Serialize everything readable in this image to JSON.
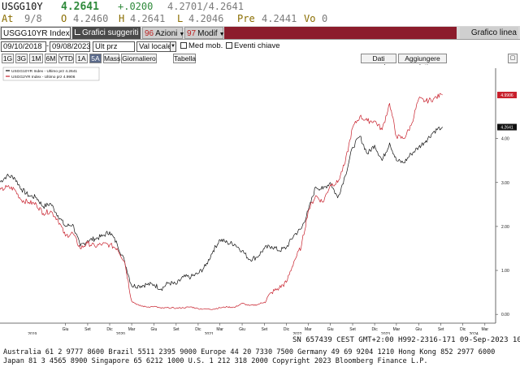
{
  "colors": {
    "green": "#2f8a3b",
    "yellow": "#8a6d00",
    "gray": "#7a7a7a",
    "black": "#111111",
    "red": "#c8202c",
    "toolbar_bg": "#d8d8d8",
    "toolbar_red": "#8c1c2c"
  },
  "quote": {
    "ticker": "USGG10Y",
    "last": "4.2641",
    "change": "+.0200",
    "range": "4.2701/4.2641",
    "at_label": "At",
    "at_time": "9/8",
    "open_label": "O",
    "open": "4.2460",
    "high_label": "H",
    "high": "4.2641",
    "low_label": "L",
    "low": "4.2046",
    "prev_label": "Pre",
    "prev": "4.2441",
    "vol_label": "Vo",
    "vol": "0"
  },
  "toolbar": {
    "security": "USGG10YR Index",
    "suggested_icon": "chart-icon",
    "suggested": "Grafici suggeriti",
    "actions_num": "96",
    "actions": "Azioni",
    "modify_num": "97",
    "modify": "Modif",
    "chart_title": "Grafico linea"
  },
  "controls": {
    "start_date": "09/10/2018",
    "end_date": "09/08/2023",
    "field": "Ult prz",
    "currency": "Val locale",
    "avg_label": "Med mob.",
    "events_label": "Eventi chiave",
    "table_label": "Tabella",
    "data_corr_label": "Dati correla",
    "add_data_label": "Aggiungere dati"
  },
  "periods": [
    "1G",
    "3G",
    "1M",
    "6M",
    "YTD",
    "1A",
    "5A",
    "Mass",
    "Giornaliero"
  ],
  "selected_period": "5A",
  "chart_data": {
    "type": "line",
    "title": "",
    "xlabel": "",
    "ylabel": "",
    "ylim": [
      -0.2,
      5.6
    ],
    "x_range": [
      "2018-09-10",
      "2024-04-01"
    ],
    "y_ticks": [
      0.0,
      1.0,
      2.0,
      3.0,
      4.0
    ],
    "y_tick_labels": [
      "0.00",
      "1.00",
      "2.00",
      "3.00",
      "4.00"
    ],
    "x_tick_month_labels": [
      "Giu",
      "Set",
      "Dic",
      "Mar",
      "Giu",
      "Set",
      "Dic",
      "Mar",
      "Giu",
      "Set",
      "Dic",
      "Mar",
      "Giu",
      "Set",
      "Dic",
      "Mar",
      "Giu",
      "Set",
      "Dic",
      "Mar"
    ],
    "x_year_labels": [
      "2019",
      "2020",
      "2021",
      "2022",
      "2023",
      "2024"
    ],
    "legend": [
      "USGG10YR Index - Ultimo prz  4.2641",
      "USGG2YR Index - Ultimo prz  4.9906"
    ],
    "last_value_badges": [
      "4.9906",
      "4.2641"
    ],
    "series": [
      {
        "name": "USGG10YR Index - Ultimo prz  4.2641",
        "color": "#111111",
        "x": [
          "2018-09",
          "2018-10",
          "2018-11",
          "2018-12",
          "2019-01",
          "2019-02",
          "2019-03",
          "2019-04",
          "2019-05",
          "2019-06",
          "2019-07",
          "2019-08",
          "2019-09",
          "2019-10",
          "2019-11",
          "2019-12",
          "2020-01",
          "2020-02",
          "2020-03",
          "2020-04",
          "2020-05",
          "2020-06",
          "2020-07",
          "2020-08",
          "2020-09",
          "2020-10",
          "2020-11",
          "2020-12",
          "2021-01",
          "2021-02",
          "2021-03",
          "2021-04",
          "2021-05",
          "2021-06",
          "2021-07",
          "2021-08",
          "2021-09",
          "2021-10",
          "2021-11",
          "2021-12",
          "2022-01",
          "2022-02",
          "2022-03",
          "2022-04",
          "2022-05",
          "2022-06",
          "2022-07",
          "2022-08",
          "2022-09",
          "2022-10",
          "2022-11",
          "2022-12",
          "2023-01",
          "2023-02",
          "2023-03",
          "2023-04",
          "2023-05",
          "2023-06",
          "2023-07",
          "2023-08",
          "2023-09"
        ],
        "values": [
          3.0,
          3.15,
          3.12,
          2.85,
          2.7,
          2.66,
          2.45,
          2.52,
          2.25,
          2.0,
          2.05,
          1.55,
          1.68,
          1.72,
          1.78,
          1.88,
          1.6,
          1.2,
          0.65,
          0.65,
          0.68,
          0.68,
          0.58,
          0.72,
          0.68,
          0.85,
          0.85,
          0.93,
          1.1,
          1.45,
          1.7,
          1.63,
          1.6,
          1.45,
          1.25,
          1.3,
          1.5,
          1.55,
          1.45,
          1.52,
          1.8,
          1.95,
          2.35,
          2.9,
          2.85,
          3.0,
          2.65,
          3.15,
          3.8,
          4.05,
          3.65,
          3.85,
          3.5,
          3.9,
          3.5,
          3.45,
          3.65,
          3.8,
          3.95,
          4.15,
          4.26
        ]
      },
      {
        "name": "USGG2YR Index - Ultimo prz  4.9906",
        "color": "#c8202c",
        "x": [
          "2018-09",
          "2018-10",
          "2018-11",
          "2018-12",
          "2019-01",
          "2019-02",
          "2019-03",
          "2019-04",
          "2019-05",
          "2019-06",
          "2019-07",
          "2019-08",
          "2019-09",
          "2019-10",
          "2019-11",
          "2019-12",
          "2020-01",
          "2020-02",
          "2020-03",
          "2020-04",
          "2020-05",
          "2020-06",
          "2020-07",
          "2020-08",
          "2020-09",
          "2020-10",
          "2020-11",
          "2020-12",
          "2021-01",
          "2021-02",
          "2021-03",
          "2021-04",
          "2021-05",
          "2021-06",
          "2021-07",
          "2021-08",
          "2021-09",
          "2021-10",
          "2021-11",
          "2021-12",
          "2022-01",
          "2022-02",
          "2022-03",
          "2022-04",
          "2022-05",
          "2022-06",
          "2022-07",
          "2022-08",
          "2022-09",
          "2022-10",
          "2022-11",
          "2022-12",
          "2023-01",
          "2023-02",
          "2023-03",
          "2023-04",
          "2023-05",
          "2023-06",
          "2023-07",
          "2023-08",
          "2023-09"
        ],
        "values": [
          2.8,
          2.9,
          2.85,
          2.6,
          2.55,
          2.5,
          2.3,
          2.35,
          2.15,
          1.78,
          1.85,
          1.5,
          1.62,
          1.55,
          1.6,
          1.58,
          1.5,
          1.2,
          0.3,
          0.2,
          0.17,
          0.18,
          0.14,
          0.15,
          0.14,
          0.15,
          0.17,
          0.13,
          0.12,
          0.12,
          0.15,
          0.17,
          0.16,
          0.25,
          0.2,
          0.22,
          0.28,
          0.5,
          0.6,
          0.73,
          1.2,
          1.55,
          2.35,
          2.7,
          2.55,
          2.95,
          3.0,
          3.45,
          4.25,
          4.5,
          4.4,
          4.4,
          4.2,
          4.8,
          4.05,
          4.0,
          4.3,
          4.9,
          4.85,
          4.9,
          4.99
        ]
      }
    ]
  },
  "footer": {
    "line1_left": "SN 657439 CEST GMT+2:00 H992-2316-171 09-Sep-2023 10:45",
    "line2": "Australia 61 2 9777 8600 Brazil 5511 2395 9000 Europe 44 20 7330 7500 Germany 49 69 9204 1210 Hong Kong 852 2977 6000",
    "line3": "Japan 81 3 4565 8900          Singapore 65 6212 1000          U.S. 1 212 318 2000          Copyright 2023 Bloomberg Finance L.P."
  }
}
